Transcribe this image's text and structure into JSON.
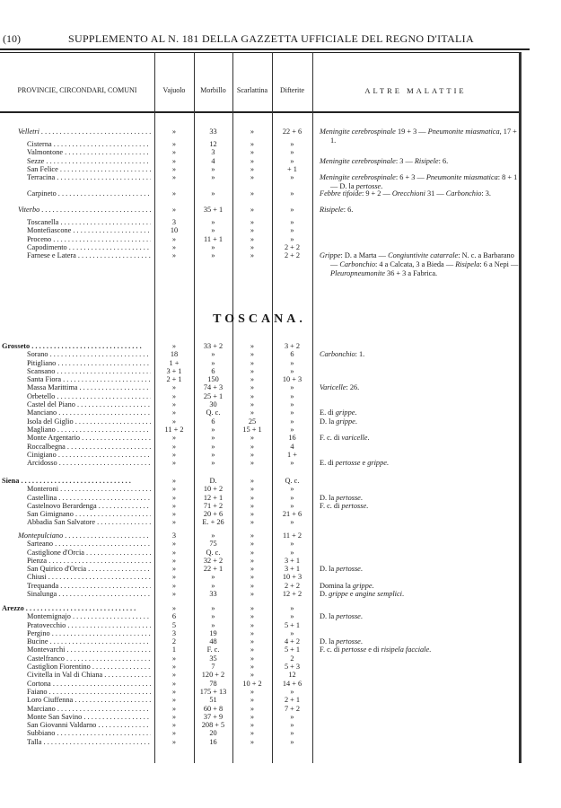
{
  "page_header": {
    "page_number": "(10)",
    "title": "SUPPLEMENTO AL N. 181 DELLA GAZZETTA UFFICIALE DEL REGNO D'ITALIA"
  },
  "table_header": [
    "PROVINCIE, CIRCONDARI, COMUNI",
    "Vajuolo",
    "Morbillo",
    "Scarlattina",
    "Difterite",
    "ALTRE MALATTIE"
  ],
  "region_title": "TOSCANA.",
  "sections": [
    {
      "rows": [
        {
          "n": "Velletri",
          "t": "c",
          "v": [
            "»",
            "33",
            "»",
            "22 + 6"
          ],
          "note": "_Meningite cerebrospinale_ 19 + 3 — _Pneumonite miasmatica_, 17 + 1."
        }
      ]
    },
    {
      "rows": [
        {
          "n": "Cisterna",
          "v": [
            "»",
            "12",
            "»",
            "»"
          ]
        },
        {
          "n": "Valmontone",
          "v": [
            "»",
            "3",
            "»",
            "»"
          ]
        },
        {
          "n": "Sezze",
          "v": [
            "»",
            "4",
            "»",
            "»"
          ],
          "note": "_Meningite cerebrospinale_: 3 — _Risipele_: 6."
        },
        {
          "n": "San Felice",
          "v": [
            "»",
            "»",
            "»",
            "+ 1"
          ]
        },
        {
          "n": "Terracina",
          "v": [
            "»",
            "»",
            "»",
            "»"
          ],
          "note": "_Meningite cerebrospinale_: 6 + 3 — _Pneumonite miasmatica_: 8 + 1 — D. la _pertosse_."
        }
      ]
    },
    {
      "rows": [
        {
          "n": "Carpineto",
          "v": [
            "»",
            "»",
            "»",
            "»"
          ],
          "note": "_Febbre tifoide_: 9 + 2 — _Orecchioni_ 31 — _Carbonchio_: 3."
        }
      ]
    },
    {
      "rows": [
        {
          "n": "Viterbo",
          "t": "c",
          "v": [
            "»",
            "35 + 1",
            "»",
            "»"
          ],
          "note": "_Risipele_: 6."
        }
      ]
    },
    {
      "rows": [
        {
          "n": "Toscanella",
          "v": [
            "3",
            "»",
            "»",
            "»"
          ]
        },
        {
          "n": "Montefiascone",
          "v": [
            "10",
            "»",
            "»",
            "»"
          ]
        },
        {
          "n": "Proceno",
          "v": [
            "»",
            "11 + 1",
            "»",
            "»"
          ]
        },
        {
          "n": "Capodimento",
          "v": [
            "»",
            "»",
            "»",
            "2 + 2"
          ]
        },
        {
          "n": "Farnese e Latera",
          "v": [
            "»",
            "»",
            "»",
            "2 + 2"
          ],
          "note": "_Grippe_: D. a Marta — _Congiuntivite catarrale_: N. c. a Barbarano — _Carbonchio_: 4 a Calcata, 3 a Bieda — _Risipela_: 6 a Nepi — _Pleuropneumonite_ 36 + 3 a Fabrica."
        }
      ]
    },
    {
      "rows": [
        {
          "n": "Grosseto",
          "t": "p",
          "v": [
            "»",
            "33 + 2",
            "»",
            "3 + 2"
          ]
        },
        {
          "n": "Sorano",
          "v": [
            "18",
            "»",
            "»",
            "6"
          ],
          "note": "_Carbonchio_: 1."
        },
        {
          "n": "Pitigliano",
          "v": [
            "1 +",
            "»",
            "»",
            "»"
          ]
        },
        {
          "n": "Scansano",
          "v": [
            "3 + 1",
            "6",
            "»",
            "»"
          ]
        },
        {
          "n": "Santa Fiora",
          "v": [
            "2 + 1",
            "150",
            "»",
            "10 + 3"
          ]
        },
        {
          "n": "Massa Marittima",
          "v": [
            "»",
            "74 + 3",
            "»",
            "»"
          ],
          "note": "_Varicelle_: 26."
        },
        {
          "n": "Orbetello",
          "v": [
            "»",
            "25 + 1",
            "»",
            "»"
          ]
        },
        {
          "n": "Castel del Piano",
          "v": [
            "»",
            "30",
            "»",
            "»"
          ]
        },
        {
          "n": "Manciano",
          "v": [
            "»",
            "Q. c.",
            "»",
            "»"
          ],
          "note": "E. di _grippe_."
        },
        {
          "n": "Isola del Giglio",
          "v": [
            "»",
            "6",
            "25",
            "»"
          ],
          "note": "D. la _grippe_."
        },
        {
          "n": "Magliano",
          "v": [
            "11 + 2",
            "»",
            "15 + 1",
            "»"
          ]
        },
        {
          "n": "Monte Argentario",
          "v": [
            "»",
            "»",
            "»",
            "16"
          ],
          "note": "F. c. di _varicelle_."
        },
        {
          "n": "Roccalbegna",
          "v": [
            "»",
            "»",
            "»",
            "4"
          ]
        },
        {
          "n": "Cinigiano",
          "v": [
            "»",
            "»",
            "»",
            "1 +"
          ]
        },
        {
          "n": "Arcidosso",
          "v": [
            "»",
            "»",
            "»",
            "»"
          ],
          "note": "E. di _pertosse_ e _grippe_."
        }
      ]
    },
    {
      "rows": [
        {
          "n": "Siena",
          "t": "p",
          "v": [
            "»",
            "D.",
            "»",
            "Q. c."
          ]
        },
        {
          "n": "Monteroni",
          "v": [
            "»",
            "10 + 2",
            "»",
            "»"
          ]
        },
        {
          "n": "Castellina",
          "v": [
            "»",
            "12 + 1",
            "»",
            "»"
          ],
          "note": "D. la _pertosse_."
        },
        {
          "n": "Castelnovo Berardenga",
          "v": [
            "»",
            "71 + 2",
            "»",
            "»"
          ],
          "note": "F. c. di _pertosse_."
        },
        {
          "n": "San Gimignano",
          "v": [
            "»",
            "20 + 6",
            "»",
            "21 + 6"
          ]
        },
        {
          "n": "Abbadia San Salvatore",
          "v": [
            "»",
            "E. + 26",
            "»",
            "»"
          ]
        }
      ]
    },
    {
      "rows": [
        {
          "n": "Montepulciano",
          "t": "c",
          "v": [
            "3",
            "»",
            "»",
            "11 + 2"
          ]
        },
        {
          "n": "Sarteano",
          "v": [
            "»",
            "75",
            "»",
            "»"
          ]
        },
        {
          "n": "Castiglione d'Orcia",
          "v": [
            "»",
            "Q. c.",
            "»",
            "»"
          ]
        },
        {
          "n": "Pienza",
          "v": [
            "»",
            "32 + 2",
            "»",
            "3 + 1"
          ]
        },
        {
          "n": "San Quirico d'Orcia",
          "v": [
            "»",
            "22 + 1",
            "»",
            "3 + 1"
          ],
          "note": "D. la _pertosse_."
        },
        {
          "n": "Chiusi",
          "v": [
            "»",
            "»",
            "»",
            "10 + 3"
          ]
        },
        {
          "n": "Trequanda",
          "v": [
            "»",
            "»",
            "»",
            "2 + 2"
          ],
          "note": "Domina la _grippe_."
        },
        {
          "n": "Sinalunga",
          "v": [
            "»",
            "33",
            "»",
            "12 + 2"
          ],
          "note": "D. _grippe_ e _angine semplici_."
        }
      ]
    },
    {
      "rows": [
        {
          "n": "Arezzo",
          "t": "p",
          "v": [
            "»",
            "»",
            "»",
            "»"
          ]
        },
        {
          "n": "Montemignajo",
          "v": [
            "6",
            "»",
            "»",
            "»"
          ],
          "note": "D. la _pertosse_."
        },
        {
          "n": "Pratovecchio",
          "v": [
            "5",
            "»",
            "»",
            "5 + 1"
          ]
        },
        {
          "n": "Pergino",
          "v": [
            "3",
            "19",
            "»",
            "»"
          ]
        },
        {
          "n": "Bucine",
          "v": [
            "2",
            "48",
            "»",
            "4 + 2"
          ],
          "note": "D. la _pertosse_."
        },
        {
          "n": "Montevarchi",
          "v": [
            "1",
            "F. c.",
            "»",
            "5 + 1"
          ],
          "note": "F. c. di _pertosse_ e di _risipela facciale_."
        },
        {
          "n": "Castelfranco",
          "v": [
            "»",
            "35",
            "»",
            "2"
          ]
        },
        {
          "n": "Castiglion Fiorentino",
          "v": [
            "»",
            "7",
            "»",
            "5 + 3"
          ]
        },
        {
          "n": "Civitella in Val di Chiana",
          "v": [
            "»",
            "120 + 2",
            "»",
            "12"
          ]
        },
        {
          "n": "Cortona",
          "v": [
            "»",
            "78",
            "10 + 2",
            "14 + 6"
          ]
        },
        {
          "n": "Faiano",
          "v": [
            "»",
            "175 + 13",
            "»",
            "»"
          ]
        },
        {
          "n": "Loro Ciuffenna",
          "v": [
            "»",
            "51",
            "»",
            "2 + 1"
          ]
        },
        {
          "n": "Marciano",
          "v": [
            "»",
            "60 + 8",
            "»",
            "7 + 2"
          ]
        },
        {
          "n": "Monte San Savino",
          "v": [
            "»",
            "37 + 9",
            "»",
            "»"
          ]
        },
        {
          "n": "San Giovanni Valdarno",
          "v": [
            "»",
            "208 + 5",
            "»",
            "»"
          ]
        },
        {
          "n": "Subbiano",
          "v": [
            "»",
            "20",
            "»",
            "»"
          ]
        },
        {
          "n": "Talla",
          "v": [
            "»",
            "16",
            "»",
            "»"
          ]
        }
      ]
    }
  ]
}
